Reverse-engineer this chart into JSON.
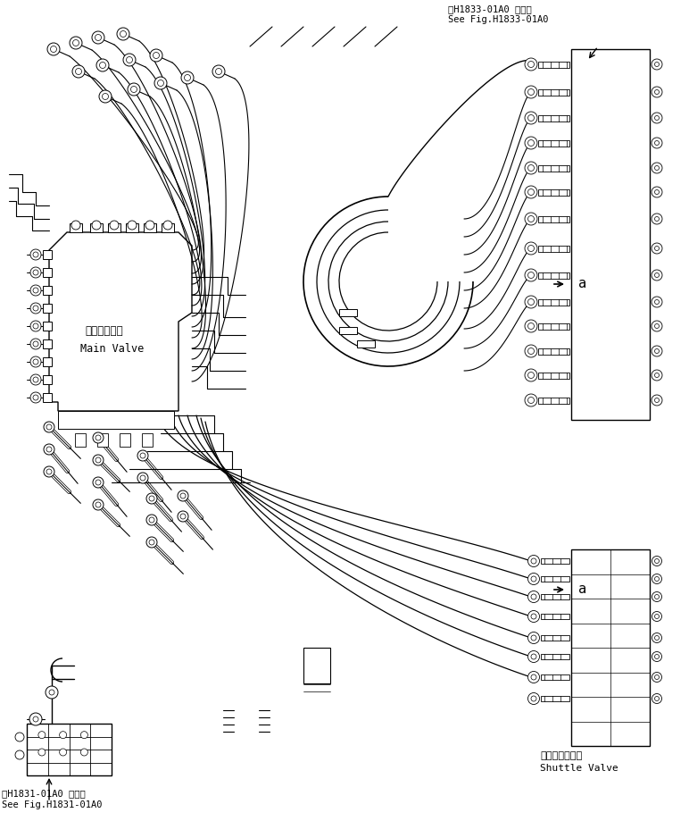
{
  "bg_color": "#ffffff",
  "line_color": "#000000",
  "title_top_right_jp": "第H1833-01A0 図参照",
  "title_top_right_en": "See Fig.H1833-01A0",
  "title_bottom_left_jp": "第H1831-01A0 図参照",
  "title_bottom_left_en": "See Fig.H1831-01A0",
  "label_main_valve_jp": "メインバルブ",
  "label_main_valve_en": "Main Valve",
  "label_shuttle_valve_jp": "シャトルバルブ",
  "label_shuttle_valve_en": "Shuttle Valve",
  "label_a": "a",
  "figsize": [
    7.72,
    9.19
  ],
  "dpi": 100
}
